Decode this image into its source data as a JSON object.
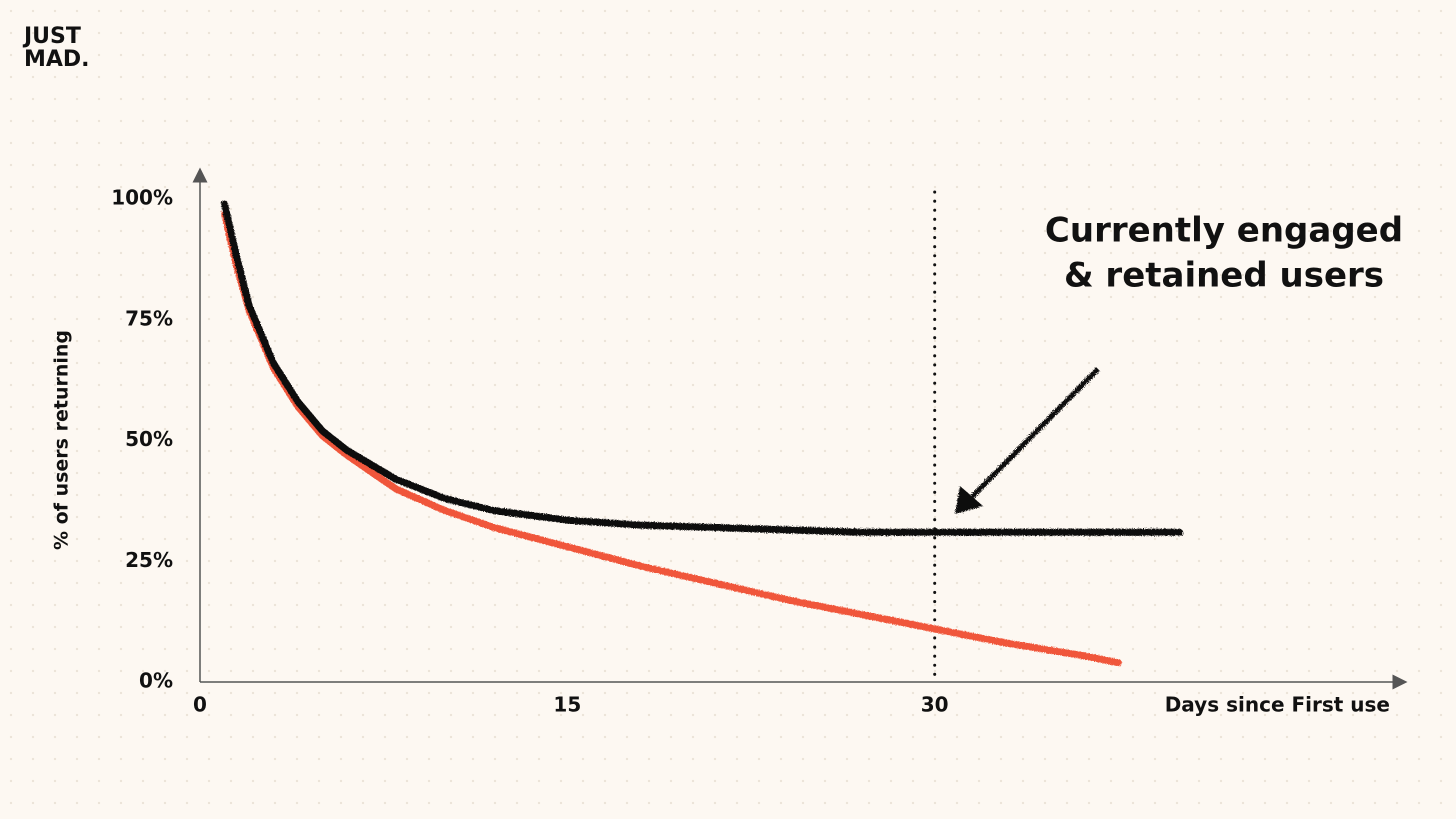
{
  "logo": [
    "JUST",
    "MAD."
  ],
  "chart_data": {
    "type": "line",
    "y_label": "% of users returning",
    "x_label": "Days since First use",
    "annotation": [
      "Currently engaged",
      "& retained users"
    ],
    "xlim": [
      0,
      49
    ],
    "xticks": [
      0,
      15,
      30
    ],
    "ylim": [
      0,
      105
    ],
    "yticks": [
      {
        "value": 0,
        "label": "0%"
      },
      {
        "value": 25,
        "label": "25%"
      },
      {
        "value": 50,
        "label": "50%"
      },
      {
        "value": 75,
        "label": "75%"
      },
      {
        "value": 100,
        "label": "100%"
      }
    ],
    "vline": 30,
    "series": [
      {
        "color": "#f0573a",
        "x": [
          1,
          1.5,
          2,
          3,
          4,
          5,
          6,
          8,
          10,
          12,
          15,
          18,
          21,
          24,
          27,
          30,
          33,
          36,
          37.5
        ],
        "values": [
          97,
          86,
          77,
          65,
          57,
          51,
          47,
          40,
          35.5,
          32,
          28,
          24,
          20.5,
          17,
          14,
          11,
          8,
          5.5,
          4
        ]
      },
      {
        "color": "#111111",
        "x": [
          1,
          1.5,
          2,
          3,
          4,
          5,
          6,
          8,
          10,
          12,
          15,
          18,
          21,
          24,
          27,
          30,
          33,
          36,
          40
        ],
        "values": [
          99,
          88,
          78,
          66,
          58,
          52,
          48,
          42,
          38,
          35.5,
          33.5,
          32.5,
          32,
          31.5,
          31,
          31,
          31,
          31,
          31
        ]
      }
    ]
  }
}
